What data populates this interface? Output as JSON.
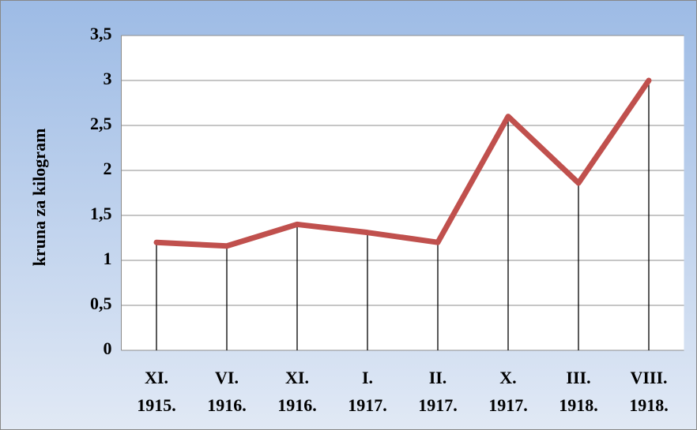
{
  "chart_data": {
    "type": "line",
    "y_label": "kruna za kilogram",
    "categories": [
      [
        "XI.",
        "1915."
      ],
      [
        "VI.",
        "1916."
      ],
      [
        "XI.",
        "1916."
      ],
      [
        "I.",
        "1917."
      ],
      [
        "II.",
        "1917."
      ],
      [
        "X.",
        "1917."
      ],
      [
        "III.",
        "1918."
      ],
      [
        "VIII.",
        "1918."
      ]
    ],
    "series": [
      {
        "color": "#c0504d",
        "values": [
          1.2,
          1.16,
          1.4,
          1.31,
          1.2,
          2.6,
          1.86,
          3.0
        ]
      }
    ],
    "ylim": [
      0,
      3.5
    ],
    "yticks": [
      0,
      {
        "value": 0.5,
        "label": "0,5"
      },
      1,
      {
        "value": 1.5,
        "label": "1,5"
      },
      2,
      {
        "value": 2.5,
        "label": "2,5"
      },
      3,
      {
        "value": 3.5,
        "label": "3,5"
      }
    ],
    "grid": true,
    "drop_lines": true
  }
}
